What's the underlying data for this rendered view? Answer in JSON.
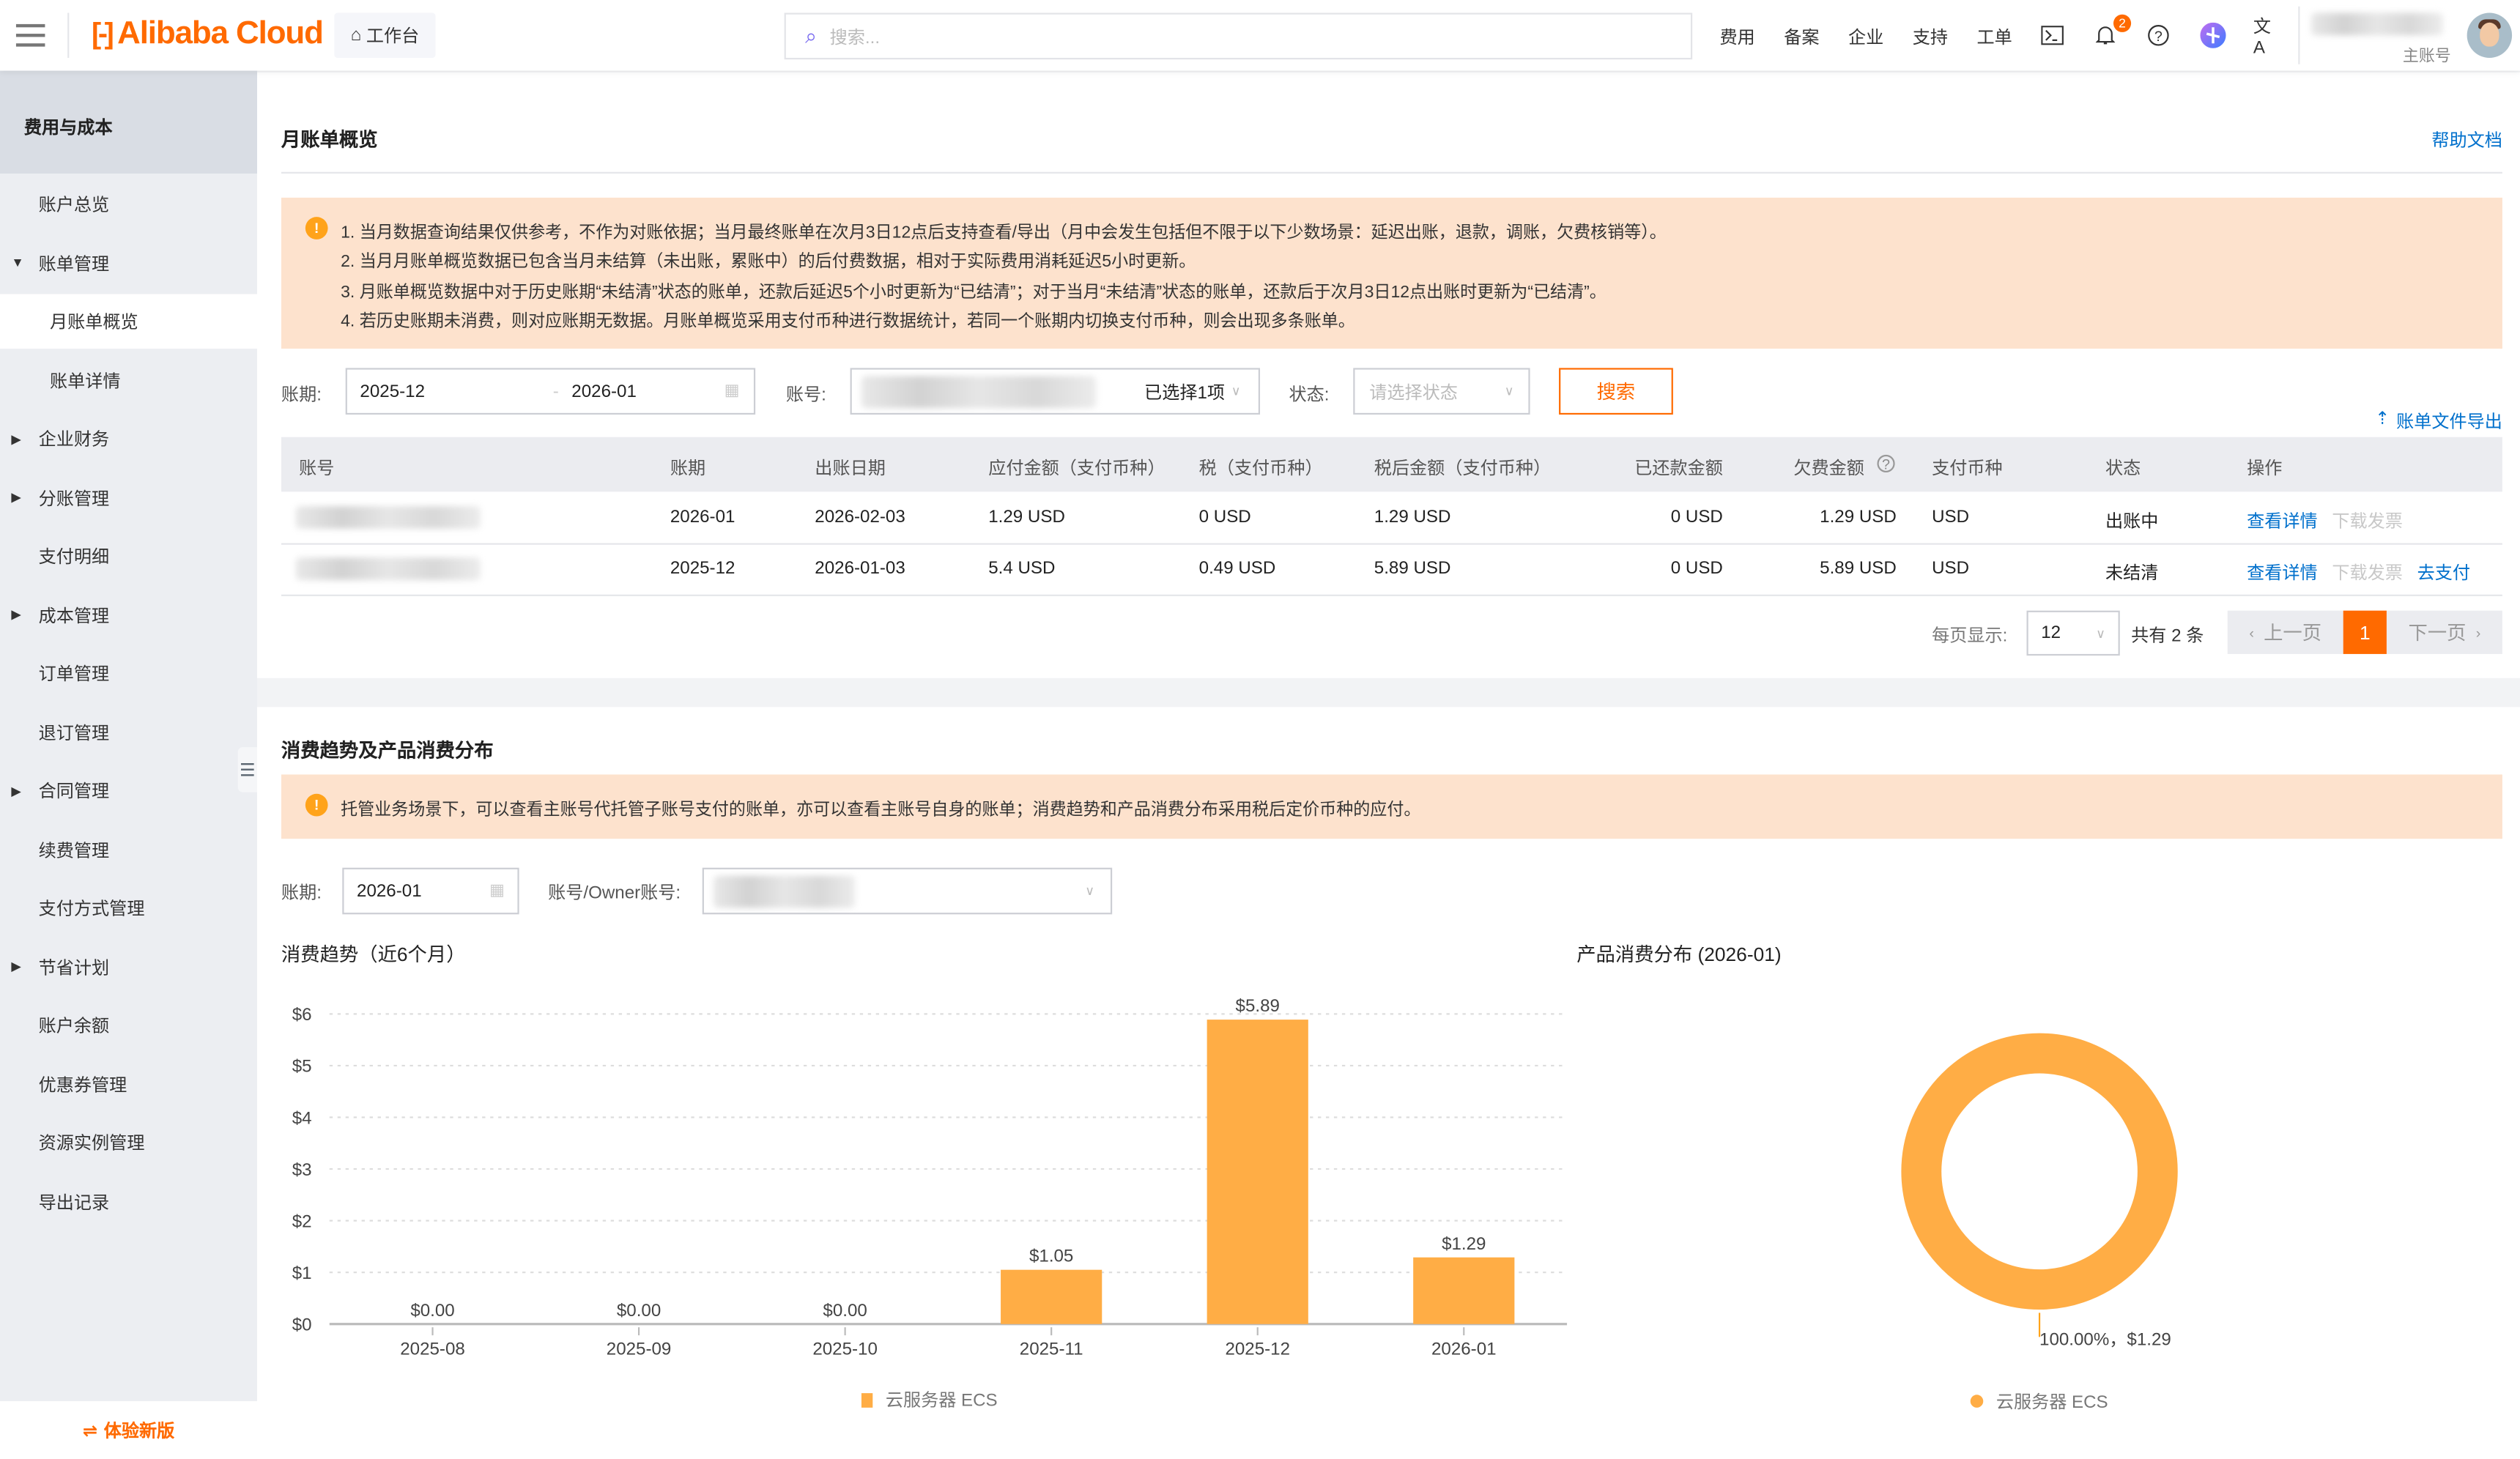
{
  "header": {
    "logo_text": "Alibaba Cloud",
    "workbench_label": "工作台",
    "search_placeholder": "搜索...",
    "nav": [
      "费用",
      "备案",
      "企业",
      "支持",
      "工单"
    ],
    "notification_count": "2",
    "account_role": "主账号",
    "icons": [
      "menu-icon",
      "home-icon",
      "search-icon",
      "terminal-icon",
      "bell-icon",
      "help-icon",
      "ai-assistant-icon",
      "translate-icon"
    ]
  },
  "sidebar": {
    "title": "费用与成本",
    "items": [
      {
        "label": "账户总览",
        "expandable": false
      },
      {
        "label": "账单管理",
        "expandable": true,
        "expanded": true
      },
      {
        "label": "月账单概览",
        "sub": true,
        "active": true
      },
      {
        "label": "账单详情",
        "sub": true
      },
      {
        "label": "企业财务",
        "expandable": true
      },
      {
        "label": "分账管理",
        "expandable": true
      },
      {
        "label": "支付明细"
      },
      {
        "label": "成本管理",
        "expandable": true
      },
      {
        "label": "订单管理"
      },
      {
        "label": "退订管理"
      },
      {
        "label": "合同管理",
        "expandable": true
      },
      {
        "label": "续费管理"
      },
      {
        "label": "支付方式管理"
      },
      {
        "label": "节省计划",
        "expandable": true
      },
      {
        "label": "账户余额"
      },
      {
        "label": "优惠券管理"
      },
      {
        "label": "资源实例管理"
      },
      {
        "label": "导出记录"
      }
    ],
    "try_new": "体验新版"
  },
  "overview": {
    "title": "月账单概览",
    "help_link": "帮助文档",
    "notice": [
      "1. 当月数据查询结果仅供参考，不作为对账依据；当月最终账单在次月3日12点后支持查看/导出（月中会发生包括但不限于以下少数场景：延迟出账，退款，调账，欠费核销等）。",
      "2. 当月月账单概览数据已包含当月未结算（未出账，累账中）的后付费数据，相对于实际费用消耗延迟5小时更新。",
      "3. 月账单概览数据中对于历史账期“未结清”状态的账单，还款后延迟5个小时更新为“已结清”；对于当月“未结清”状态的账单，还款后于次月3日12点出账时更新为“已结清”。",
      "4. 若历史账期未消费，则对应账期无数据。月账单概览采用支付币种进行数据统计，若同一个账期内切换支付币种，则会出现多条账单。"
    ],
    "filters": {
      "period_label": "账期:",
      "period_start": "2025-12",
      "period_end": "2026-01",
      "account_label": "账号:",
      "account_selected": "已选择1项",
      "status_label": "状态:",
      "status_placeholder": "请选择状态",
      "search_button": "搜索"
    },
    "export_link": "账单文件导出",
    "table": {
      "columns": [
        "账号",
        "账期",
        "出账日期",
        "应付金额（支付币种）",
        "税（支付币种）",
        "税后金额（支付币种）",
        "已还款金额",
        "欠费金额",
        "支付币种",
        "状态",
        "操作"
      ],
      "rows": [
        {
          "period": "2026-01",
          "bill_date": "2026-02-03",
          "payable": "1.29 USD",
          "tax": "0 USD",
          "after_tax": "1.29 USD",
          "repaid": "0 USD",
          "owed": "1.29 USD",
          "currency": "USD",
          "status": "出账中",
          "actions": [
            "查看详情",
            "下载发票"
          ]
        },
        {
          "period": "2025-12",
          "bill_date": "2026-01-03",
          "payable": "5.4 USD",
          "tax": "0.49 USD",
          "after_tax": "5.89 USD",
          "repaid": "0 USD",
          "owed": "5.89 USD",
          "currency": "USD",
          "status": "未结清",
          "actions": [
            "查看详情",
            "下载发票",
            "去支付"
          ]
        }
      ]
    },
    "pagination": {
      "page_size_label": "每页显示:",
      "page_size": "12",
      "total": "共有 2 条",
      "prev": "上一页",
      "current": "1",
      "next": "下一页"
    }
  },
  "trend_section": {
    "title": "消费趋势及产品消费分布",
    "notice": "托管业务场景下，可以查看主账号代托管子账号支付的账单，亦可以查看主账号自身的账单；消费趋势和产品消费分布采用税后定价币种的应付。",
    "period_label": "账期:",
    "period_value": "2026-01",
    "owner_label": "账号/Owner账号:"
  },
  "colors": {
    "brand": "#ff6a00",
    "link": "#0070cc",
    "series": "#ffad45",
    "notice_bg": "#fde2cd"
  },
  "chart_data": [
    {
      "type": "bar",
      "title": "消费趋势（近6个月）",
      "categories": [
        "2025-08",
        "2025-09",
        "2025-10",
        "2025-11",
        "2025-12",
        "2026-01"
      ],
      "series": [
        {
          "name": "云服务器 ECS",
          "values": [
            0,
            0,
            0,
            1.05,
            5.89,
            1.29
          ]
        }
      ],
      "data_labels": [
        "$0.00",
        "$0.00",
        "$0.00",
        "$1.05",
        "$5.89",
        "$1.29"
      ],
      "yticks": [
        "$0",
        "$1",
        "$2",
        "$3",
        "$4",
        "$5",
        "$6"
      ],
      "ylim": [
        0,
        6
      ],
      "grid": true,
      "legend": "bottom"
    },
    {
      "type": "pie",
      "title": "产品消费分布 (2026-01)",
      "donut": true,
      "slices": [
        {
          "name": "云服务器 ECS",
          "value": 1.29,
          "percent": 100.0,
          "label": "100.00%，$1.29"
        }
      ],
      "legend": "bottom"
    }
  ]
}
